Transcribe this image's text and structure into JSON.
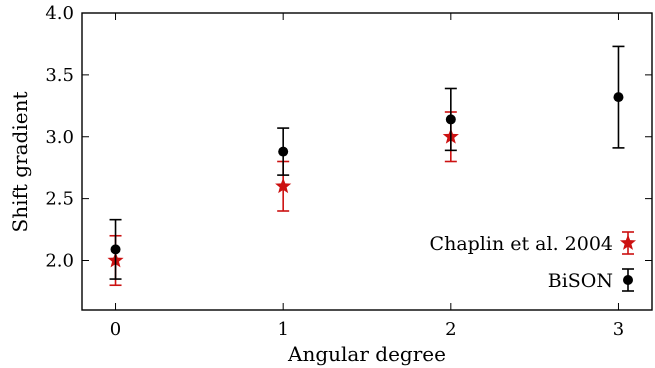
{
  "chart_data": {
    "type": "scatter",
    "title": "",
    "xlabel": "Angular degree",
    "ylabel": "Shift gradient",
    "xlim": [
      -0.2,
      3.2
    ],
    "ylim": [
      1.6,
      4.0
    ],
    "x_ticks": [
      0,
      1,
      2,
      3
    ],
    "x_tick_labels": [
      "0",
      "1",
      "2",
      "3"
    ],
    "y_ticks": [
      2.0,
      2.5,
      3.0,
      3.5,
      4.0
    ],
    "y_tick_labels": [
      "2.0",
      "2.5",
      "3.0",
      "3.5",
      "4.0"
    ],
    "grid": false,
    "legend_position": "lower-right",
    "series": [
      {
        "name": "Chaplin et al. 2004",
        "marker": "star",
        "color": "#cc1111",
        "points": [
          {
            "x": 0,
            "y": 2.0,
            "err": 0.2
          },
          {
            "x": 1,
            "y": 2.6,
            "err": 0.2
          },
          {
            "x": 2,
            "y": 3.0,
            "err": 0.2
          }
        ]
      },
      {
        "name": "BiSON",
        "marker": "circle",
        "color": "#000000",
        "points": [
          {
            "x": 0,
            "y": 2.09,
            "err": 0.24
          },
          {
            "x": 1,
            "y": 2.88,
            "err": 0.19
          },
          {
            "x": 2,
            "y": 3.14,
            "err": 0.25
          },
          {
            "x": 3,
            "y": 3.32,
            "err": 0.41
          }
        ]
      }
    ]
  }
}
